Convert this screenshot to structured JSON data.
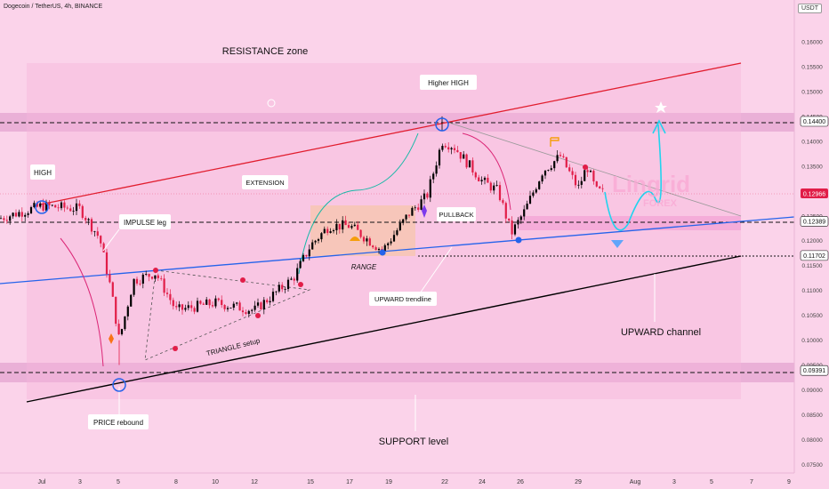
{
  "header": {
    "title": "Dogecoin / TetherUS, 4h, BINANCE",
    "quote": "USDT"
  },
  "watermark": {
    "brand": "Lingrid",
    "sub": "FOREX"
  },
  "colors": {
    "background": "#fbd3ea",
    "zone": "#e6a9d3",
    "up": "#000000",
    "down": "#e11d48",
    "resistance_line": "#e11d2e",
    "trend_line": "#2563eb",
    "support_line": "#000000",
    "price_badge": "#e11d48"
  },
  "chart_data": {
    "type": "candlestick",
    "y_axis": {
      "range": [
        0.0735,
        0.1655
      ],
      "ticks": [
        "0.16000",
        "0.15500",
        "0.15000",
        "0.14500",
        "0.14000",
        "0.13500",
        "0.13000",
        "0.12500",
        "0.12000",
        "0.11500",
        "0.11000",
        "0.10500",
        "0.10000",
        "0.09500",
        "0.09000",
        "0.08500",
        "0.08000",
        "0.07500"
      ]
    },
    "x_axis": {
      "ticks": [
        "Jul",
        "3",
        "5",
        "8",
        "10",
        "12",
        "15",
        "17",
        "19",
        "22",
        "24",
        "26",
        "29",
        "Aug",
        "3",
        "5",
        "7",
        "9"
      ]
    },
    "levels": [
      {
        "value": 0.144,
        "label": "0.14400"
      },
      {
        "value": 0.12389,
        "label": "0.12389"
      },
      {
        "value": 0.11702,
        "label": "0.11702"
      },
      {
        "value": 0.09391,
        "label": "0.09391"
      }
    ],
    "current_price": "0.12966",
    "annotations": {
      "resistance_zone": "RESISTANCE zone",
      "higher_high": "Higher HIGH",
      "high": "HIGH",
      "impulse_leg": "IMPULSE leg",
      "extension": "EXTENSION",
      "pullback": "PULLBACK",
      "range": "RANGE",
      "triangle_setup": "TRIANGLE setup",
      "upward_trendline": "UPWARD trendline",
      "upward_channel": "UPWARD channel",
      "price_rebound": "PRICE rebound",
      "support_level": "SUPPORT level"
    },
    "series": [
      {
        "x": "Jun 29",
        "close": 0.1245
      },
      {
        "x": "Jul 1",
        "close": 0.127
      },
      {
        "x": "Jul 2",
        "high": 0.1265,
        "close": 0.1264
      },
      {
        "x": "Jul 3",
        "close": 0.123
      },
      {
        "x": "Jul 4",
        "close": 0.115
      },
      {
        "x": "Jul 5",
        "low": 0.095,
        "close": 0.105
      },
      {
        "x": "Jul 6",
        "close": 0.1135
      },
      {
        "x": "Jul 8",
        "close": 0.106
      },
      {
        "x": "Jul 10",
        "close": 0.1075
      },
      {
        "x": "Jul 12",
        "close": 0.106
      },
      {
        "x": "Jul 14",
        "close": 0.1125
      },
      {
        "x": "Jul 15",
        "close": 0.1205
      },
      {
        "x": "Jul 17",
        "close": 0.123
      },
      {
        "x": "Jul 19",
        "close": 0.1185
      },
      {
        "x": "Jul 20",
        "close": 0.1255
      },
      {
        "x": "Jul 22",
        "high": 0.145,
        "close": 0.14
      },
      {
        "x": "Jul 23",
        "close": 0.1355
      },
      {
        "x": "Jul 24",
        "close": 0.131
      },
      {
        "x": "Jul 25",
        "close": 0.1215
      },
      {
        "x": "Jul 26",
        "close": 0.129
      },
      {
        "x": "Jul 27",
        "close": 0.134
      },
      {
        "x": "Jul 28",
        "close": 0.137
      },
      {
        "x": "Jul 29",
        "close": 0.1305
      },
      {
        "x": "Jul 30",
        "close": 0.135
      },
      {
        "x": "Jul 31",
        "close": 0.1297
      }
    ]
  }
}
